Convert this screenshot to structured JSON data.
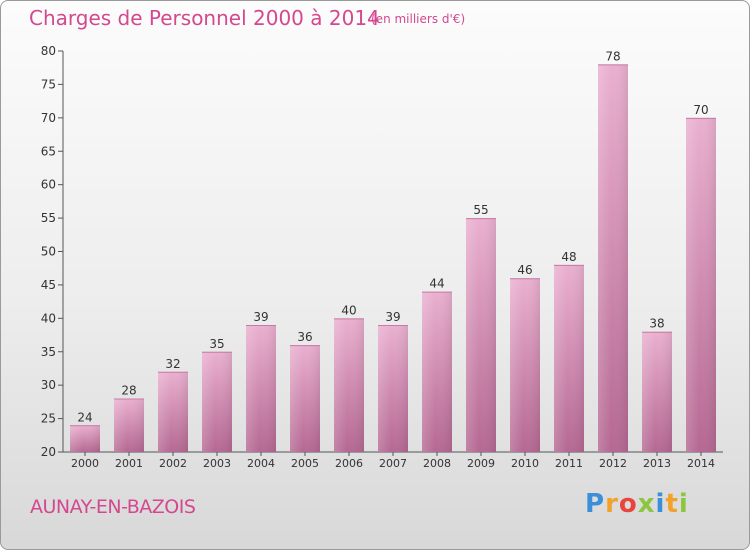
{
  "header": {
    "title": "Charges de Personnel 2000 à 2014",
    "subtitle": "(en milliers d'€)"
  },
  "footer": {
    "commune": "AUNAY-EN-BAZOIS",
    "logo": [
      {
        "ch": "P",
        "color": "#3a8fd8"
      },
      {
        "ch": "r",
        "color": "#f2a22a"
      },
      {
        "ch": "o",
        "color": "#e8463c"
      },
      {
        "ch": "x",
        "color": "#8cc63f"
      },
      {
        "ch": "i",
        "color": "#3a8fd8"
      },
      {
        "ch": "t",
        "color": "#f2a22a"
      },
      {
        "ch": "i",
        "color": "#8cc63f"
      }
    ]
  },
  "chart_data": {
    "type": "bar",
    "title": "Charges de Personnel 2000 à 2014",
    "subtitle": "(en milliers d'€)",
    "categories": [
      "2000",
      "2001",
      "2002",
      "2003",
      "2004",
      "2005",
      "2006",
      "2007",
      "2008",
      "2009",
      "2010",
      "2011",
      "2012",
      "2013",
      "2014"
    ],
    "values": [
      24,
      28,
      32,
      35,
      39,
      36,
      40,
      39,
      44,
      55,
      46,
      48,
      78,
      38,
      70
    ],
    "ylim": [
      20,
      80
    ],
    "yticks": [
      20,
      25,
      30,
      35,
      40,
      45,
      50,
      55,
      60,
      65,
      70,
      75,
      80
    ],
    "grid": false,
    "data_labels": true,
    "colors": {
      "bar_light": "#e9a9cc",
      "bar_dark": "#b96a96",
      "text": "#333333",
      "axis": "#555555"
    }
  }
}
